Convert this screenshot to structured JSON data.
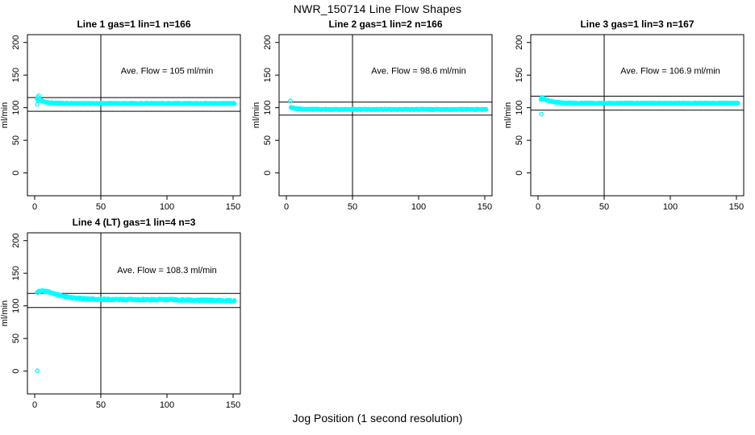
{
  "figure": {
    "title": "NWR_150714  Line Flow Shapes",
    "xlabel": "Jog Position (1 second resolution)"
  },
  "colors": {
    "marker": "#00ffff",
    "axis": "#000000",
    "background": "#ffffff"
  },
  "chart_data": [
    {
      "type": "scatter",
      "title": "Line 1 gas=1 lin=1 n=166",
      "annotation": "Ave. Flow =  105  ml/min",
      "annotation_xy": [
        100,
        152
      ],
      "ave_flow_ml_min": 105,
      "n_points": 166,
      "ylabel": "ml/min",
      "xticks": [
        0,
        50,
        100,
        150
      ],
      "yticks": [
        0,
        50,
        100,
        150,
        200
      ],
      "xlim": [
        -5.5,
        155.5
      ],
      "ylim": [
        -35,
        212
      ],
      "ref_hlines": [
        115.5,
        94.5
      ],
      "ref_vline": 50,
      "series": {
        "keypoints": [
          [
            3.5,
            113
          ],
          [
            5,
            110.5
          ],
          [
            7,
            109
          ],
          [
            10,
            107.8
          ],
          [
            15,
            107
          ],
          [
            25,
            106.6
          ],
          [
            151,
            106.5
          ]
        ],
        "extra_points": [
          [
            2,
            105
          ],
          [
            2.4,
            116
          ],
          [
            3,
            118.5
          ],
          [
            3.3,
            113.5
          ],
          [
            2.8,
            110.5
          ]
        ],
        "jitter": 0.5,
        "x_start": 2,
        "x_end": 151,
        "x_step": 0.5
      }
    },
    {
      "type": "scatter",
      "title": "Line 2 gas=1 lin=2 n=166",
      "annotation": "Ave. Flow =  98.6  ml/min",
      "annotation_xy": [
        100,
        152
      ],
      "ave_flow_ml_min": 98.6,
      "n_points": 166,
      "ylabel": "ml/min",
      "xticks": [
        0,
        50,
        100,
        150
      ],
      "yticks": [
        0,
        50,
        100,
        150,
        200
      ],
      "xlim": [
        -5.5,
        155.5
      ],
      "ylim": [
        -35,
        212
      ],
      "ref_hlines": [
        108.5,
        88.7
      ],
      "ref_vline": 50,
      "series": {
        "keypoints": [
          [
            4,
            100.3
          ],
          [
            6,
            99
          ],
          [
            9,
            98.2
          ],
          [
            14,
            97.7
          ],
          [
            25,
            97.4
          ],
          [
            151,
            97.4
          ]
        ],
        "extra_points": [
          [
            3,
            110.5
          ]
        ],
        "jitter": 0.5,
        "x_start": 3.5,
        "x_end": 151,
        "x_step": 0.5
      }
    },
    {
      "type": "scatter",
      "title": "Line 3 gas=1 lin=3 n=167",
      "annotation": "Ave. Flow =  106.9  ml/min",
      "annotation_xy": [
        100,
        152
      ],
      "ave_flow_ml_min": 106.9,
      "n_points": 167,
      "ylabel": "ml/min",
      "xticks": [
        0,
        50,
        100,
        150
      ],
      "yticks": [
        0,
        50,
        100,
        150,
        200
      ],
      "xlim": [
        -5.5,
        155.5
      ],
      "ylim": [
        -35,
        212
      ],
      "ref_hlines": [
        117.6,
        96.2
      ],
      "ref_vline": 50,
      "series": {
        "keypoints": [
          [
            3,
            114.5
          ],
          [
            5,
            113
          ],
          [
            8,
            110.8
          ],
          [
            12,
            108.8
          ],
          [
            18,
            107.5
          ],
          [
            30,
            106.9
          ],
          [
            151,
            106.9
          ]
        ],
        "extra_points": [
          [
            2.5,
            90
          ],
          [
            2.2,
            112.5
          ],
          [
            3,
            116
          ],
          [
            3.8,
            115
          ]
        ],
        "jitter": 0.5,
        "x_start": 2.5,
        "x_end": 151,
        "x_step": 0.5
      }
    },
    {
      "type": "scatter",
      "title": "Line 4 (LT) gas=1 lin=4 n=3",
      "annotation": "Ave. Flow =  108.3  ml/min",
      "annotation_xy": [
        100,
        150
      ],
      "ave_flow_ml_min": 108.3,
      "n_points": 3,
      "ylabel": "ml/min",
      "xticks": [
        0,
        50,
        100,
        150
      ],
      "yticks": [
        0,
        50,
        100,
        150,
        200
      ],
      "xlim": [
        -5.5,
        155.5
      ],
      "ylim": [
        -35,
        212
      ],
      "ref_hlines": [
        119.1,
        97.5
      ],
      "ref_vline": 50,
      "series": {
        "keypoints": [
          [
            2,
            121
          ],
          [
            4,
            122.7
          ],
          [
            6,
            123
          ],
          [
            9,
            122
          ],
          [
            13,
            119.8
          ],
          [
            17,
            117.3
          ],
          [
            21,
            115.2
          ],
          [
            26,
            113.2
          ],
          [
            31,
            111.8
          ],
          [
            37,
            110.8
          ],
          [
            45,
            110.1
          ],
          [
            60,
            109.7
          ],
          [
            80,
            109.5
          ],
          [
            100,
            109.4
          ],
          [
            115,
            109
          ],
          [
            130,
            108.6
          ],
          [
            142,
            108.2
          ],
          [
            151,
            107.6
          ]
        ],
        "extra_points": [
          [
            2,
            0.5
          ]
        ],
        "jitter": 1.0,
        "x_start": 2,
        "x_end": 151,
        "x_step": 0.5
      }
    }
  ]
}
